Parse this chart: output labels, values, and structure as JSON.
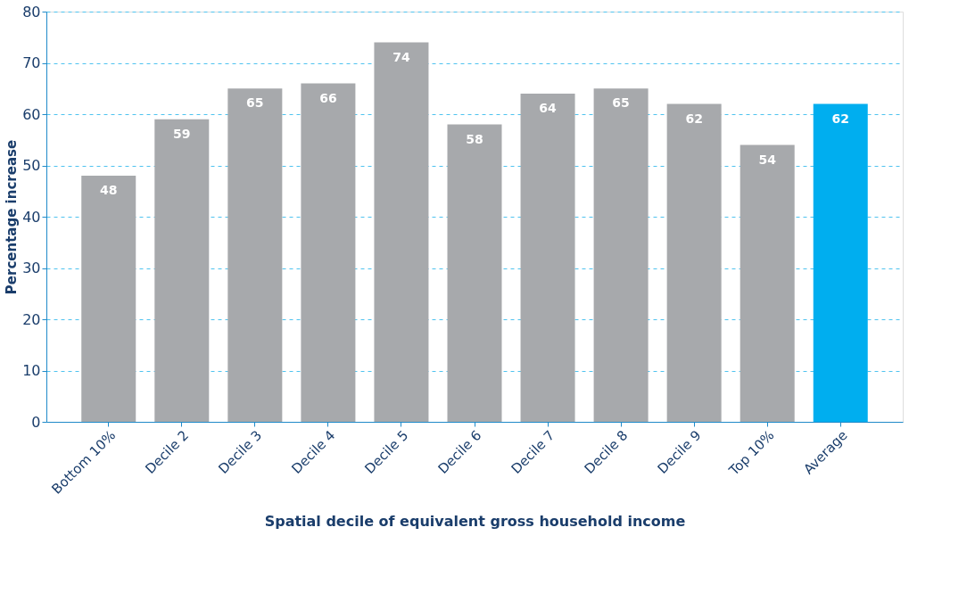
{
  "chart_data": {
    "type": "bar",
    "xlabel": "Spatial decile of equivalent gross household income",
    "ylabel": "Percentage increase",
    "categories": [
      "Bottom 10%",
      "Decile 2",
      "Decile 3",
      "Decile 4",
      "Decile 5",
      "Decile 6",
      "Decile 7",
      "Decile 8",
      "Decile 9",
      "Top 10%",
      "Average"
    ],
    "values": [
      48,
      59,
      65,
      66,
      74,
      58,
      64,
      65,
      62,
      54,
      62
    ],
    "colors": [
      "#a7a9ac",
      "#a7a9ac",
      "#a7a9ac",
      "#a7a9ac",
      "#a7a9ac",
      "#a7a9ac",
      "#a7a9ac",
      "#a7a9ac",
      "#a7a9ac",
      "#a7a9ac",
      "#00aeef"
    ],
    "ylim": [
      0,
      80
    ],
    "yticks": [
      0,
      10,
      20,
      30,
      40,
      50,
      60,
      70,
      80
    ],
    "grid": "y",
    "data_labels": true
  }
}
